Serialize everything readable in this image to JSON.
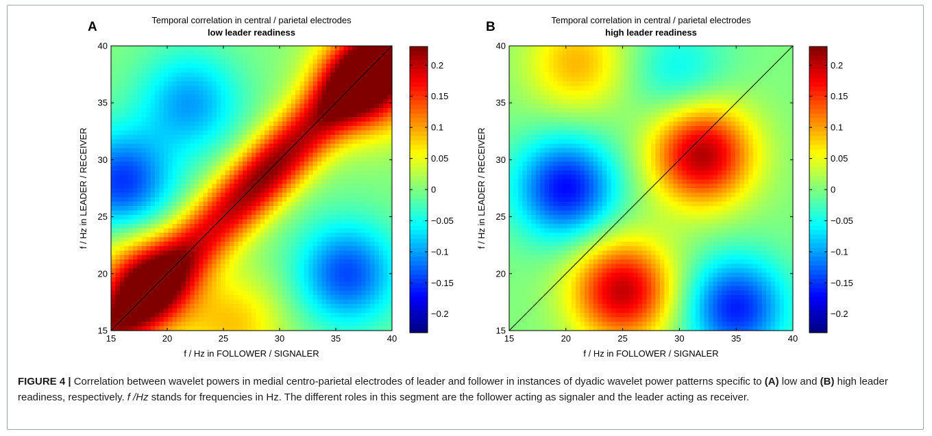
{
  "figure": {
    "caption": {
      "label": "FIGURE 4 |",
      "t1": " Correlation between wavelet powers in medial centro-parietal electrodes of leader and follower in instances of dyadic wavelet power patterns specific to ",
      "a": "(A)",
      "t2": " low and ",
      "b": "(B)",
      "t3": " high leader readiness, respectively. ",
      "italic": "f /Hz",
      "t4": " stands for frequencies in Hz. The different roles in this segment are the follower acting as signaler and the leader acting as receiver."
    }
  },
  "chart_data": [
    {
      "type": "heatmap",
      "panel_label": "A",
      "title": "Temporal correlation in central / parietal electrodes",
      "subtitle": "low leader readiness",
      "xlabel": "f / Hz in FOLLOWER / SIGNALER",
      "ylabel": "f / Hz in LEADER / RECEIVER",
      "xlim": [
        15,
        40
      ],
      "ylim": [
        15,
        40
      ],
      "xticks": [
        "15",
        "20",
        "25",
        "30",
        "35",
        "40"
      ],
      "yticks": [
        "15",
        "20",
        "25",
        "30",
        "35",
        "40"
      ],
      "colorbar_ticks": [
        "0.2",
        "0.15",
        "0.1",
        "0.05",
        "0",
        "−0.05",
        "−0.1",
        "−0.15",
        "−0.2"
      ],
      "clim": [
        -0.23,
        0.23
      ],
      "colormap": "jet",
      "diagonal_line": true,
      "features": [
        {
          "kind": "ridge",
          "along": "diagonal",
          "peak_at": [
            29,
            28.5
          ],
          "value": 0.23
        },
        {
          "kind": "peak",
          "x": 38,
          "y": 37,
          "value": 0.22
        },
        {
          "kind": "peak",
          "x": 18,
          "y": 19,
          "value": 0.17
        },
        {
          "kind": "trough",
          "x": 16,
          "y": 28,
          "value": -0.15
        },
        {
          "kind": "trough",
          "x": 22,
          "y": 35,
          "value": -0.1
        },
        {
          "kind": "trough",
          "x": 36,
          "y": 20,
          "value": -0.14
        },
        {
          "kind": "peak",
          "x": 26,
          "y": 15.5,
          "value": 0.08
        }
      ]
    },
    {
      "type": "heatmap",
      "panel_label": "B",
      "title": "Temporal correlation in central / parietal electrodes",
      "subtitle": "high leader readiness",
      "xlabel": "f / Hz in FOLLOWER / SIGNALER",
      "ylabel": "f / Hz in LEADER / RECEIVER",
      "xlim": [
        15,
        40
      ],
      "ylim": [
        15,
        40
      ],
      "xticks": [
        "15",
        "20",
        "25",
        "30",
        "35",
        "40"
      ],
      "yticks": [
        "15",
        "20",
        "25",
        "30",
        "35",
        "40"
      ],
      "colorbar_ticks": [
        "0.2",
        "0.15",
        "0.1",
        "0.05",
        "0",
        "−0.05",
        "−0.1",
        "−0.15",
        "−0.2"
      ],
      "clim": [
        -0.23,
        0.23
      ],
      "colormap": "jet",
      "diagonal_line": true,
      "features": [
        {
          "kind": "peak",
          "x": 32,
          "y": 30.5,
          "value": 0.21
        },
        {
          "kind": "peak",
          "x": 25,
          "y": 18.5,
          "value": 0.2
        },
        {
          "kind": "trough",
          "x": 20,
          "y": 27.5,
          "value": -0.17
        },
        {
          "kind": "trough",
          "x": 35,
          "y": 17,
          "value": -0.16
        },
        {
          "kind": "peak",
          "x": 21,
          "y": 38.5,
          "value": 0.09
        },
        {
          "kind": "trough",
          "x": 30,
          "y": 37.5,
          "value": -0.06
        }
      ]
    }
  ]
}
